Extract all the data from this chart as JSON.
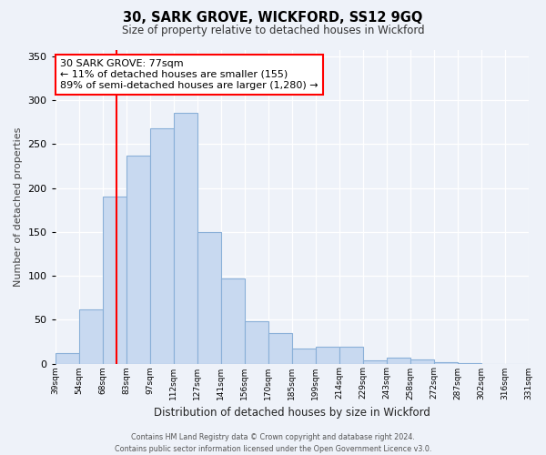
{
  "title": "30, SARK GROVE, WICKFORD, SS12 9GQ",
  "subtitle": "Size of property relative to detached houses in Wickford",
  "xlabel": "Distribution of detached houses by size in Wickford",
  "ylabel": "Number of detached properties",
  "bin_labels": [
    "39sqm",
    "54sqm",
    "68sqm",
    "83sqm",
    "97sqm",
    "112sqm",
    "127sqm",
    "141sqm",
    "156sqm",
    "170sqm",
    "185sqm",
    "199sqm",
    "214sqm",
    "229sqm",
    "243sqm",
    "258sqm",
    "272sqm",
    "287sqm",
    "302sqm",
    "316sqm",
    "331sqm"
  ],
  "bar_values": [
    12,
    62,
    190,
    237,
    268,
    285,
    150,
    97,
    48,
    35,
    17,
    19,
    19,
    4,
    7,
    5,
    2,
    1,
    0,
    0
  ],
  "bar_color": "#c8d9f0",
  "bar_edge_color": "#8ab0d8",
  "vline_color": "red",
  "annotation_text": "30 SARK GROVE: 77sqm\n← 11% of detached houses are smaller (155)\n89% of semi-detached houses are larger (1,280) →",
  "yticks": [
    0,
    50,
    100,
    150,
    200,
    250,
    300,
    350
  ],
  "ylim": [
    0,
    357
  ],
  "footer_text": "Contains HM Land Registry data © Crown copyright and database right 2024.\nContains public sector information licensed under the Open Government Licence v3.0.",
  "background_color": "#eef2f9",
  "grid_color": "white"
}
